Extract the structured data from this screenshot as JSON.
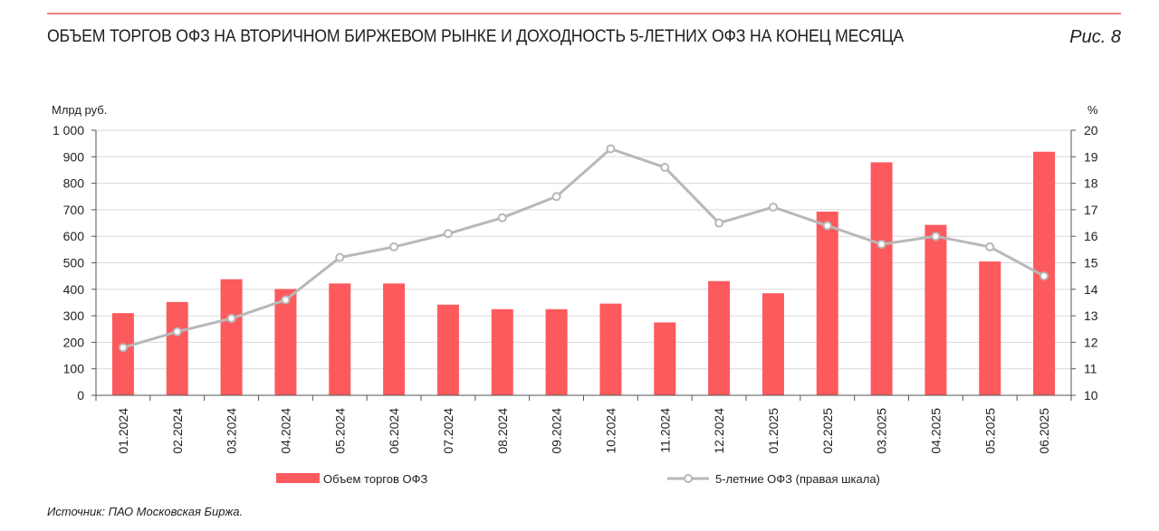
{
  "header": {
    "title": "ОБЪЕМ ТОРГОВ ОФЗ НА ВТОРИЧНОМ БИРЖЕВОМ РЫНКЕ И ДОХОДНОСТЬ 5-ЛЕТНИХ ОФЗ НА КОНЕЦ МЕСЯЦА",
    "figure_label": "Рис. 8"
  },
  "source": "Источник: ПАО Московская Биржа.",
  "colors": {
    "bar": "#fd5a5e",
    "line": "#b8b8b8",
    "accent_rule": "#f07f86"
  },
  "chart_data": {
    "type": "bar",
    "categories": [
      "01.2024",
      "02.2024",
      "03.2024",
      "04.2024",
      "05.2024",
      "06.2024",
      "07.2024",
      "08.2024",
      "09.2024",
      "10.2024",
      "11.2024",
      "12.2024",
      "01.2025",
      "02.2025",
      "03.2025",
      "04.2025",
      "05.2025",
      "06.2025"
    ],
    "series": [
      {
        "name": "Объем торгов ОФЗ",
        "type": "bar",
        "axis": "left",
        "values": [
          310,
          352,
          438,
          401,
          422,
          422,
          342,
          325,
          325,
          346,
          275,
          431,
          385,
          693,
          879,
          643,
          505,
          919
        ]
      },
      {
        "name": "5-летние ОФЗ (правая шкала)",
        "type": "line",
        "axis": "right",
        "marker": "circle",
        "values": [
          11.8,
          12.4,
          12.9,
          13.6,
          15.2,
          15.6,
          16.1,
          16.7,
          17.5,
          19.3,
          18.6,
          16.5,
          17.1,
          16.4,
          15.7,
          16.0,
          15.6,
          14.5
        ]
      }
    ],
    "y_left": {
      "label": "Млрд руб.",
      "min": 0,
      "max": 1000,
      "step": 100,
      "ticks": [
        "0",
        "100",
        "200",
        "300",
        "400",
        "500",
        "600",
        "700",
        "800",
        "900",
        "1 000"
      ]
    },
    "y_right": {
      "label": "%",
      "min": 10,
      "max": 20,
      "step": 1,
      "ticks": [
        "10",
        "11",
        "12",
        "13",
        "14",
        "15",
        "16",
        "17",
        "18",
        "19",
        "20"
      ]
    },
    "grid": true,
    "legend_position": "bottom"
  }
}
